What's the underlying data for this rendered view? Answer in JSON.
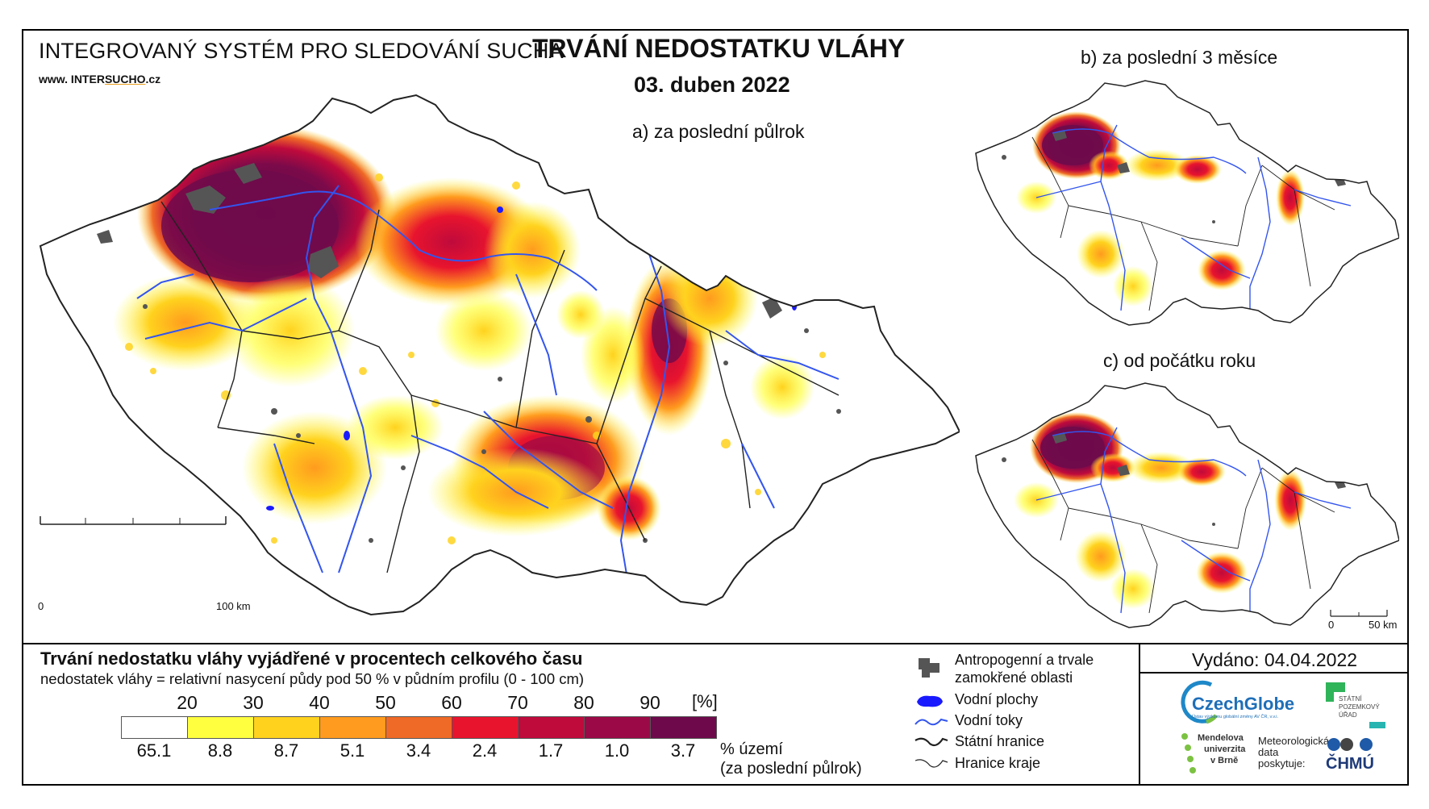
{
  "header": {
    "system_title": "INTEGROVANÝ SYSTÉM PRO SLEDOVÁNÍ SUCHA",
    "url_prefix": "www. INTER",
    "url_brand": "SUCHO",
    "url_suffix": ".cz",
    "main_title": "TRVÁNÍ NEDOSTATKU VLÁHY",
    "date": "03. duben 2022"
  },
  "panels": {
    "a_label": "a) za poslední půlrok",
    "b_label": "b) za poslední 3 měsíce",
    "c_label": "c) od počátku roku"
  },
  "scale_bars": {
    "main": {
      "start": "0",
      "end": "100 km"
    },
    "small": {
      "start": "0",
      "end": "50 km"
    }
  },
  "legend": {
    "title": "Trvání nedostatku vláhy vyjádřené v procentech celkového času",
    "subtitle": "nedostatek vláhy = relativní nasycení půdy pod 50 % v půdním profilu (0 - 100 cm)",
    "unit": "[%]",
    "thresholds": [
      "20",
      "30",
      "40",
      "50",
      "60",
      "70",
      "80",
      "90"
    ],
    "bins": [
      {
        "color": "#ffffff",
        "area_pct": "65.1"
      },
      {
        "color": "#ffff40",
        "area_pct": "8.8"
      },
      {
        "color": "#ffd21e",
        "area_pct": "8.7"
      },
      {
        "color": "#ff9b1e",
        "area_pct": "5.1"
      },
      {
        "color": "#ef6a26",
        "area_pct": "3.4"
      },
      {
        "color": "#e8142e",
        "area_pct": "2.4"
      },
      {
        "color": "#bf0a3c",
        "area_pct": "1.7"
      },
      {
        "color": "#9b0a46",
        "area_pct": "1.0"
      },
      {
        "color": "#6e0a4b",
        "area_pct": "3.7"
      }
    ],
    "pct_label_line1": "% území",
    "pct_label_line2": "(za poslední půlrok)"
  },
  "symbols": {
    "anthropogenic_line1": "Antropogenní a trvale",
    "anthropogenic_line2": "zamokřené oblasti",
    "water_bodies": "Vodní plochy",
    "rivers": "Vodní toky",
    "state_border": "Státní hranice",
    "region_border": "Hranice kraje"
  },
  "issued": "Vydáno: 04.04.2022",
  "logos": {
    "czechglobe": "CzechGlobe",
    "czechglobe_sub": "Ústav výzkumu globální změny AV ČR, v.v.i.",
    "spu_line1": "STÁTNÍ",
    "spu_line2": "POZEMKOVÝ",
    "spu_line3": "ÚŘAD",
    "mendel_line1": "Mendelova",
    "mendel_line2": "univerzita",
    "mendel_line3": "v Brně",
    "meteo_line1": "Meteorologická",
    "meteo_line2": "data",
    "meteo_line3": "poskytuje:",
    "chmu": "ČHMÚ"
  },
  "colors": {
    "river": "#3355ee",
    "water": "#1a1aff",
    "anthropogenic": "#555555",
    "border": "#222222"
  }
}
